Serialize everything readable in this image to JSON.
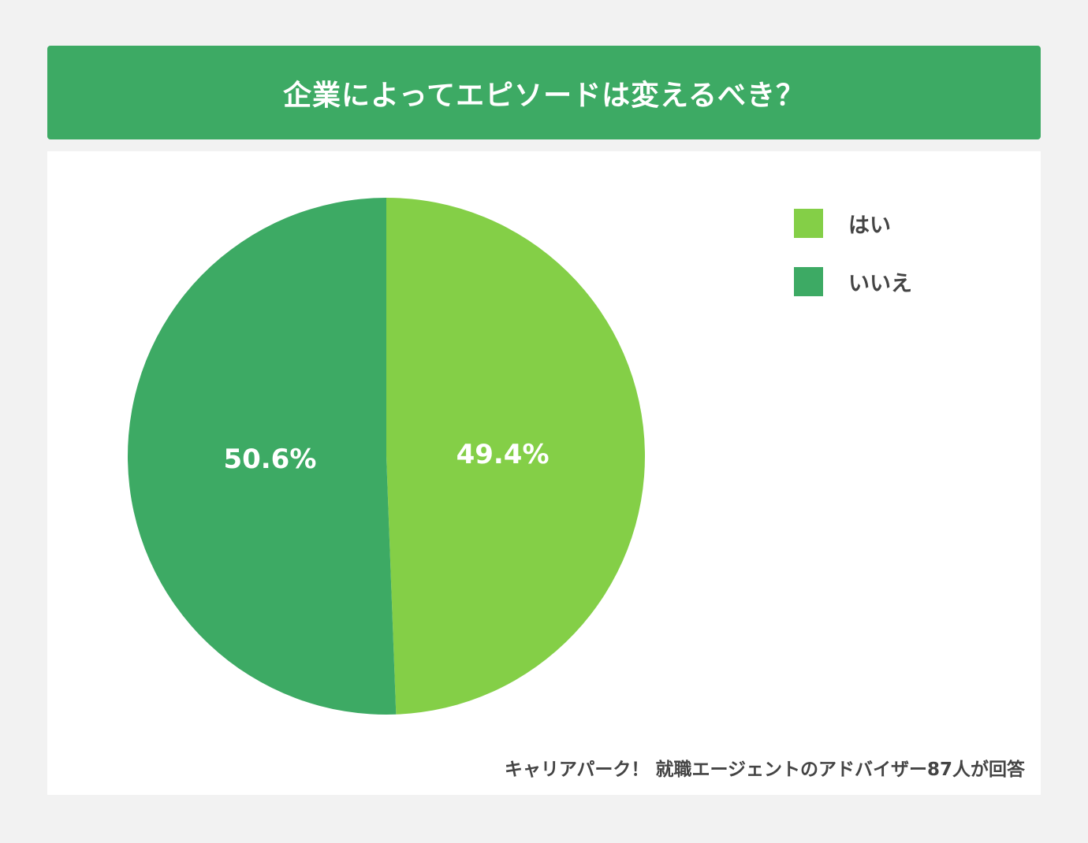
{
  "header": {
    "title": "企業によってエピソードは変えるべき？"
  },
  "colors": {
    "header_bg": "#3daa64",
    "yes": "#84cf47",
    "no": "#3daa64"
  },
  "legend": [
    {
      "label": "はい",
      "color": "#84cf47"
    },
    {
      "label": "いいえ",
      "color": "#3daa64"
    }
  ],
  "source": "キャリアパーク！ 就職エージェントのアドバイザー87人が回答",
  "chart_data": {
    "type": "pie",
    "title": "企業によってエピソードは変えるべき？",
    "categories": [
      "はい",
      "いいえ"
    ],
    "values": [
      49.4,
      50.6
    ],
    "labels": [
      "49.4%",
      "50.6%"
    ],
    "colors": [
      "#84cf47",
      "#3daa64"
    ],
    "legend_position": "top-right",
    "note": "キャリアパーク！ 就職エージェントのアドバイザー87人が回答"
  }
}
